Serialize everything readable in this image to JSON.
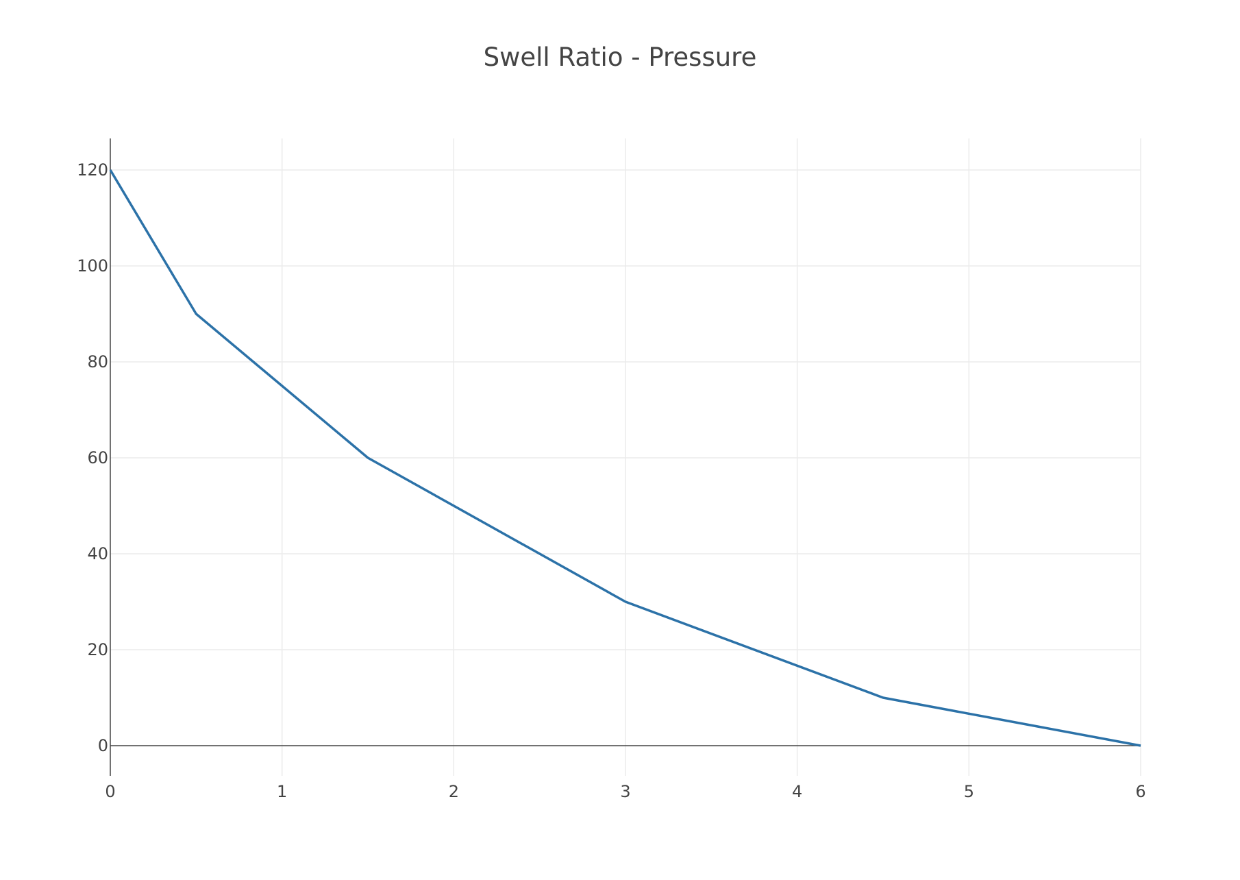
{
  "chart_data": {
    "type": "line",
    "title": "Swell Ratio - Pressure",
    "xlabel": "",
    "ylabel": "",
    "xlim": [
      0,
      6
    ],
    "ylim": [
      -6.5,
      127
    ],
    "x_ticks": [
      0,
      1,
      2,
      3,
      4,
      5,
      6
    ],
    "y_ticks": [
      0,
      20,
      40,
      60,
      80,
      100,
      120
    ],
    "grid": true,
    "legend": "none",
    "series": [
      {
        "color": "#2c72a8",
        "x": [
          0,
          0.5,
          1.5,
          3,
          4.5,
          6
        ],
        "y": [
          120,
          90,
          60,
          30,
          10,
          0
        ]
      }
    ]
  }
}
